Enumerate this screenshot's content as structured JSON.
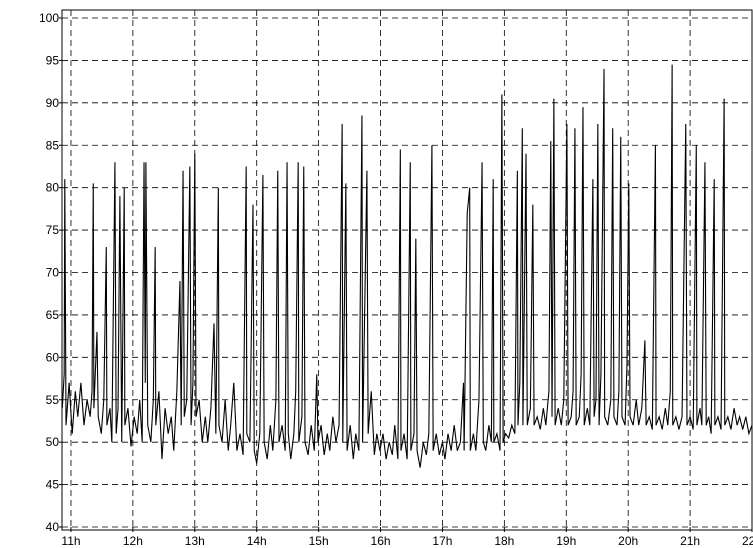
{
  "chart_data": {
    "type": "line",
    "x": [
      10.86,
      10.89,
      10.9,
      10.92,
      10.97,
      11.02,
      11.07,
      11.11,
      11.16,
      11.21,
      11.26,
      11.31,
      11.34,
      11.36,
      11.37,
      11.42,
      11.44,
      11.49,
      11.53,
      11.57,
      11.58,
      11.63,
      11.66,
      11.71,
      11.73,
      11.76,
      11.79,
      11.82,
      11.86,
      11.87,
      11.92,
      11.97,
      12.02,
      12.07,
      12.11,
      12.15,
      12.18,
      12.2,
      12.21,
      12.24,
      12.29,
      12.33,
      12.36,
      12.37,
      12.42,
      12.47,
      12.52,
      12.57,
      12.62,
      12.66,
      12.71,
      12.76,
      12.78,
      12.81,
      12.83,
      12.87,
      12.92,
      12.94,
      12.97,
      13.0,
      13.02,
      13.07,
      13.12,
      13.17,
      13.21,
      13.26,
      13.31,
      13.34,
      13.38,
      13.39,
      13.44,
      13.49,
      13.54,
      13.58,
      13.63,
      13.68,
      13.73,
      13.78,
      13.83,
      13.84,
      13.89,
      13.94,
      13.96,
      14.0,
      14.05,
      14.1,
      14.12,
      14.17,
      14.22,
      14.26,
      14.31,
      14.34,
      14.36,
      14.41,
      14.46,
      14.49,
      14.51,
      14.55,
      14.6,
      14.63,
      14.67,
      14.68,
      14.73,
      14.76,
      14.78,
      14.83,
      14.88,
      14.93,
      14.97,
      14.99,
      15.04,
      15.09,
      15.14,
      15.18,
      15.23,
      15.28,
      15.33,
      15.38,
      15.39,
      15.44,
      15.46,
      15.51,
      15.56,
      15.6,
      15.65,
      15.7,
      15.71,
      15.78,
      15.8,
      15.85,
      15.9,
      15.94,
      15.99,
      16.04,
      16.09,
      16.14,
      16.19,
      16.23,
      16.28,
      16.32,
      16.33,
      16.38,
      16.43,
      16.48,
      16.49,
      16.54,
      16.57,
      16.59,
      16.64,
      16.69,
      16.74,
      16.78,
      16.83,
      16.85,
      16.9,
      16.95,
      17.0,
      17.04,
      17.09,
      17.14,
      17.19,
      17.24,
      17.29,
      17.34,
      17.35,
      17.4,
      17.44,
      17.45,
      17.5,
      17.54,
      17.59,
      17.64,
      17.66,
      17.7,
      17.75,
      17.79,
      17.82,
      17.83,
      17.88,
      17.93,
      17.96,
      17.98,
      18.02,
      18.07,
      18.12,
      18.17,
      18.21,
      18.22,
      18.25,
      18.29,
      18.3,
      18.35,
      18.37,
      18.42,
      18.46,
      18.48,
      18.53,
      18.58,
      18.63,
      18.67,
      18.72,
      18.75,
      18.77,
      18.8,
      18.82,
      18.87,
      18.92,
      18.96,
      19.01,
      19.03,
      19.08,
      19.11,
      19.14,
      19.16,
      19.21,
      19.24,
      19.27,
      19.29,
      19.34,
      19.38,
      19.43,
      19.45,
      19.48,
      19.51,
      19.53,
      19.56,
      19.61,
      19.62,
      19.67,
      19.72,
      19.75,
      19.77,
      19.82,
      19.85,
      19.88,
      19.9,
      19.95,
      19.98,
      20.01,
      20.03,
      20.08,
      20.13,
      20.17,
      20.22,
      20.27,
      20.29,
      20.34,
      20.39,
      20.44,
      20.45,
      20.5,
      20.55,
      20.6,
      20.64,
      20.68,
      20.71,
      20.72,
      20.77,
      20.82,
      20.87,
      20.93,
      20.95,
      21.0,
      21.05,
      21.1,
      21.11,
      21.16,
      21.19,
      21.24,
      21.26,
      21.3,
      21.34,
      21.39,
      21.4,
      21.45,
      21.5,
      21.55,
      21.56,
      21.61,
      21.66,
      21.71,
      21.76,
      21.8,
      21.85,
      21.9,
      21.95,
      22.0
    ],
    "series": [
      {
        "color": "#000000",
        "values": [
          54,
          58,
          81,
          52,
          57,
          51,
          56,
          53,
          57,
          52,
          55,
          53,
          56,
          80.5,
          54,
          63,
          53,
          51,
          55,
          73,
          52,
          54,
          50,
          83,
          51,
          54,
          79,
          50,
          80,
          52,
          54,
          49.5,
          53,
          51,
          55,
          50,
          83,
          57,
          83,
          52,
          50,
          55,
          73,
          52,
          56,
          48,
          54,
          51,
          53,
          49,
          56,
          69,
          52,
          82,
          53,
          55,
          82.5,
          52,
          57,
          84,
          53,
          55,
          50,
          53,
          50,
          54,
          64,
          51,
          80,
          52,
          50,
          55,
          49,
          52,
          57,
          49,
          51,
          48.5,
          82.5,
          51,
          50,
          78,
          49,
          47.5,
          51,
          81.5,
          50,
          48,
          52,
          49,
          55,
          82,
          50,
          52,
          49,
          83,
          51,
          48,
          51,
          56,
          83,
          50,
          53,
          82.5,
          50,
          48.5,
          52,
          49,
          58,
          50,
          52,
          48.5,
          51,
          49,
          53,
          50,
          52,
          87.5,
          50,
          80.5,
          49,
          52,
          48,
          51,
          49,
          88.5,
          50,
          82,
          51,
          56,
          48.5,
          51,
          49,
          51,
          48,
          50,
          48.5,
          52,
          48,
          84.5,
          49,
          51,
          48,
          83,
          49,
          51,
          74,
          49,
          47,
          50,
          48.5,
          51,
          85,
          49,
          51,
          48.5,
          50,
          48,
          51,
          49,
          52,
          49,
          50,
          57,
          49,
          77,
          80,
          49,
          51,
          49,
          55,
          83,
          50,
          49,
          52,
          50,
          81,
          50,
          51,
          49,
          91,
          50,
          51,
          50.5,
          52,
          51,
          82,
          52,
          57,
          87,
          52,
          84,
          52,
          54,
          78,
          52,
          53,
          51.5,
          54,
          52,
          56,
          85.5,
          53,
          90.5,
          52,
          54,
          52,
          55,
          87.5,
          52,
          53,
          56,
          87,
          52,
          53,
          58,
          89.5,
          52,
          54,
          52,
          81,
          53,
          55,
          87.5,
          52,
          58,
          94,
          53,
          52,
          55,
          87,
          53,
          52,
          56,
          86,
          53,
          52,
          59,
          80.5,
          53,
          52,
          55,
          52,
          54,
          62,
          52,
          53,
          51.5,
          85,
          52,
          53,
          51.5,
          54,
          52,
          56,
          94.5,
          52,
          53,
          51.5,
          53,
          87.5,
          52,
          53,
          51.5,
          85,
          52,
          54,
          52,
          83,
          52,
          53,
          51,
          81,
          52,
          53,
          51.5,
          90.5,
          52,
          53,
          51.5,
          54,
          52,
          53,
          51.5,
          53,
          51,
          52
        ]
      }
    ],
    "xlim": [
      10.855,
      22.0
    ],
    "ylim": [
      40,
      100
    ],
    "xticks": [
      {
        "value": 11,
        "label": "11h"
      },
      {
        "value": 12,
        "label": "12h"
      },
      {
        "value": 13,
        "label": "13h"
      },
      {
        "value": 14,
        "label": "14h"
      },
      {
        "value": 15,
        "label": "15h"
      },
      {
        "value": 16,
        "label": "16h"
      },
      {
        "value": 17,
        "label": "17h"
      },
      {
        "value": 18,
        "label": "18h"
      },
      {
        "value": 19,
        "label": "19h"
      },
      {
        "value": 20,
        "label": "20h"
      },
      {
        "value": 21,
        "label": "21h"
      },
      {
        "value": 22,
        "label": "22h"
      }
    ],
    "yticks": [
      40,
      45,
      50,
      55,
      60,
      65,
      70,
      75,
      80,
      85,
      90,
      95,
      100
    ],
    "grid": true
  }
}
